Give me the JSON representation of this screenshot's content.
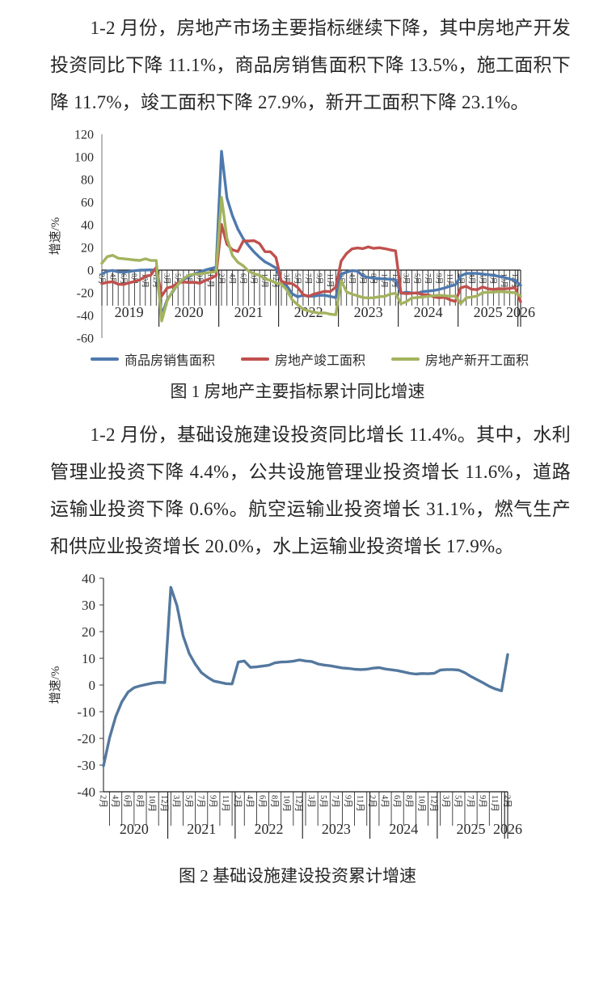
{
  "paragraphs": {
    "p1": "1-2 月份，房地产市场主要指标继续下降，其中房地产开发投资同比下降 11.1%，商品房销售面积下降 13.5%，施工面积下降 11.7%，竣工面积下降 27.9%，新开工面积下降 23.1%。",
    "p2": "1-2 月份，基础设施建设投资同比增长 11.4%。其中，水利管理业投资下降 4.4%，公共设施管理业投资增长 11.6%，道路运输业投资下降 0.6%。航空运输业投资增长 31.1%，燃气生产和供应业投资增长 20.0%，水上运输业投资增长 17.9%。"
  },
  "captions": {
    "fig1": "图 1 房地产主要指标累计同比增速",
    "fig2": "图 2 基础设施建设投资累计增速"
  },
  "chart_data": [
    {
      "type": "line",
      "title": "图 1 房地产主要指标累计同比增速",
      "xlabel": "",
      "ylabel": "增速/%",
      "ylim": [
        -60,
        120
      ],
      "yticks": [
        120,
        100,
        80,
        60,
        40,
        20,
        0,
        -20,
        -40,
        -60
      ],
      "grid": false,
      "legend_position": "bottom",
      "category_axis_at_zero": true,
      "label_every": 2,
      "month_pattern": [
        "2月",
        "3月",
        "4月",
        "5月",
        "6月",
        "7月",
        "8月",
        "9月",
        "10月",
        "11月",
        "12月"
      ],
      "year_bands": [
        {
          "label": "2019",
          "count": 11
        },
        {
          "label": "2020",
          "count": 11
        },
        {
          "label": "2021",
          "count": 11
        },
        {
          "label": "2022",
          "count": 11
        },
        {
          "label": "2023",
          "count": 11
        },
        {
          "label": "2024",
          "count": 11
        },
        {
          "label": "2025",
          "count": 11
        },
        {
          "label": "2026",
          "count": 1
        }
      ],
      "series": [
        {
          "name": "商品房销售面积",
          "color": "#4E79AE",
          "values": [
            -3.6,
            -0.9,
            -0.3,
            -1.6,
            -1.8,
            -1.3,
            -0.6,
            -0.1,
            0.1,
            0.2,
            -0.1,
            -39.9,
            -26.3,
            -19.3,
            -12.3,
            -8.4,
            -5.8,
            -3.3,
            -1.8,
            0.0,
            1.3,
            2.6,
            104.9,
            63.8,
            48.1,
            36.3,
            27.7,
            21.5,
            15.9,
            11.3,
            7.3,
            4.8,
            1.9,
            -9.6,
            -13.8,
            -20.9,
            -23.6,
            -22.2,
            -23.1,
            -23.0,
            -22.2,
            -22.3,
            -23.3,
            -24.3,
            -3.6,
            -1.8,
            -0.4,
            -0.9,
            -5.3,
            -6.5,
            -7.1,
            -7.5,
            -7.8,
            -8.0,
            -8.5,
            -20.5,
            -19.4,
            -20.2,
            -20.3,
            -19.0,
            -18.6,
            -18.0,
            -17.1,
            -15.8,
            -14.3,
            -12.9,
            -5.1,
            -3.0,
            -2.8,
            -2.9,
            -3.5,
            -4.0,
            -4.7,
            -5.5,
            -6.5,
            -7.8,
            -9.2,
            -13.5
          ]
        },
        {
          "name": "房地产竣工面积",
          "color": "#C0504D",
          "values": [
            -11.9,
            -10.8,
            -10.3,
            -12.4,
            -12.7,
            -11.3,
            -10.0,
            -8.6,
            -5.5,
            -4.5,
            2.6,
            -22.9,
            -15.8,
            -14.5,
            -11.3,
            -10.5,
            -10.9,
            -10.8,
            -11.6,
            -9.2,
            -7.3,
            -4.9,
            40.4,
            22.9,
            17.9,
            16.4,
            25.7,
            25.7,
            26.0,
            23.4,
            16.3,
            16.2,
            11.2,
            -9.8,
            -11.5,
            -11.9,
            -15.3,
            -21.5,
            -23.3,
            -21.1,
            -19.9,
            -18.7,
            -19.0,
            -15.0,
            8.0,
            14.7,
            18.8,
            19.6,
            19.0,
            20.5,
            19.2,
            19.8,
            19.0,
            17.9,
            17.0,
            -20.2,
            -20.7,
            -20.4,
            -20.1,
            -21.8,
            -21.8,
            -23.6,
            -24.4,
            -23.9,
            -26.2,
            -27.7,
            -15.6,
            -14.3,
            -16.9,
            -17.3,
            -14.8,
            -16.5,
            -17.0,
            -16.4,
            -16.6,
            -16.2,
            -15.5,
            -27.9
          ]
        },
        {
          "name": "房地产新开工面积",
          "color": "#A3B35F",
          "values": [
            6.0,
            11.9,
            13.1,
            10.5,
            10.1,
            9.5,
            8.9,
            8.6,
            10.0,
            8.6,
            8.5,
            -44.9,
            -27.2,
            -18.4,
            -12.8,
            -7.6,
            -4.5,
            -3.6,
            -3.4,
            -2.6,
            -2.0,
            -1.2,
            64.3,
            28.2,
            12.9,
            6.9,
            3.8,
            -0.9,
            -3.2,
            -4.5,
            -7.7,
            -9.1,
            -11.4,
            -12.2,
            -17.5,
            -26.3,
            -30.6,
            -34.4,
            -36.1,
            -37.2,
            -38.0,
            -37.8,
            -38.9,
            -39.4,
            -9.4,
            -19.2,
            -21.2,
            -22.6,
            -24.3,
            -24.5,
            -24.4,
            -23.4,
            -23.2,
            -21.2,
            -20.4,
            -29.7,
            -27.8,
            -24.6,
            -24.2,
            -23.7,
            -23.2,
            -22.5,
            -22.2,
            -22.6,
            -23.0,
            -23.0,
            -29.6,
            -24.4,
            -23.8,
            -22.8,
            -20.0,
            -19.4,
            -19.5,
            -18.9,
            -19.2,
            -19.6,
            -20.0,
            -23.1
          ]
        }
      ]
    },
    {
      "type": "line",
      "title": "图 2 基础设施建设投资累计增速",
      "xlabel": "",
      "ylabel": "增速/%",
      "ylim": [
        -40,
        40
      ],
      "yticks": [
        40,
        30,
        20,
        10,
        0,
        -10,
        -20,
        -30,
        -40
      ],
      "grid": false,
      "legend_position": "none",
      "category_axis_at_zero": false,
      "label_every": 2,
      "month_pattern": [
        "2月",
        "3月",
        "4月",
        "5月",
        "6月",
        "7月",
        "8月",
        "9月",
        "10月",
        "11月",
        "12月"
      ],
      "year_bands": [
        {
          "label": "2020",
          "count": 11
        },
        {
          "label": "2021",
          "count": 11
        },
        {
          "label": "2022",
          "count": 11
        },
        {
          "label": "2023",
          "count": 11
        },
        {
          "label": "2024",
          "count": 11
        },
        {
          "label": "2025",
          "count": 11
        },
        {
          "label": "2026",
          "count": 1
        }
      ],
      "series": [
        {
          "name": "基础设施建设投资",
          "color": "#54789E",
          "values": [
            -30.3,
            -19.7,
            -11.8,
            -6.3,
            -2.7,
            -1.0,
            -0.3,
            0.2,
            0.7,
            1.0,
            0.9,
            36.6,
            29.7,
            18.4,
            11.8,
            7.8,
            4.6,
            2.9,
            1.5,
            1.0,
            0.5,
            0.4,
            8.6,
            9.0,
            6.6,
            6.8,
            7.1,
            7.4,
            8.3,
            8.6,
            8.7,
            8.9,
            9.4,
            9.0,
            8.8,
            7.9,
            7.5,
            7.2,
            6.8,
            6.4,
            6.2,
            5.9,
            5.8,
            5.9,
            6.3,
            6.5,
            6.0,
            5.7,
            5.4,
            4.9,
            4.4,
            4.1,
            4.3,
            4.2,
            4.4,
            5.6,
            5.8,
            5.8,
            5.6,
            4.6,
            3.2,
            2.0,
            0.8,
            -0.5,
            -1.5,
            -2.2,
            11.4
          ]
        }
      ]
    }
  ]
}
